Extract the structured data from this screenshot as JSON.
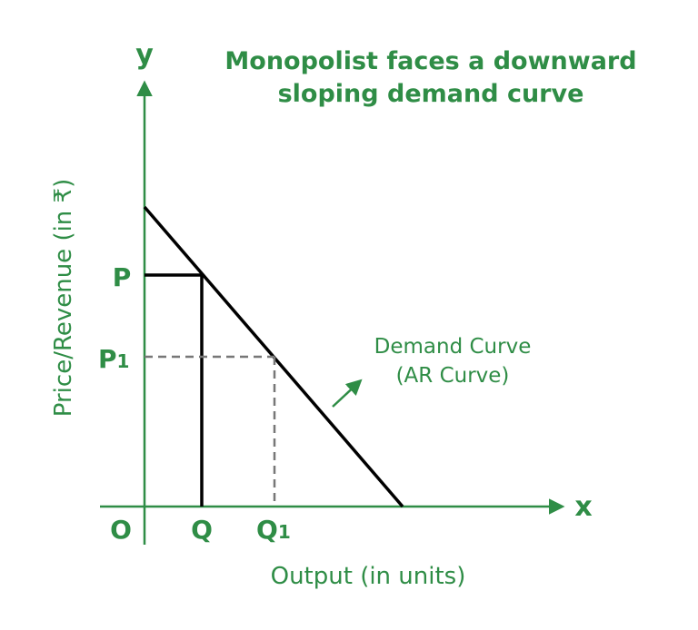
{
  "title_line1": "Monopolist faces a downward",
  "title_line2": "sloping demand curve",
  "y_axis_symbol": "y",
  "x_axis_symbol": "x",
  "y_axis_label": "Price/Revenue (in ₹)",
  "x_axis_label": "Output (in units)",
  "origin_label": "O",
  "labels": {
    "P": "P",
    "P1": "P",
    "P1_sub": "1",
    "Q": "Q",
    "Q1": "Q",
    "Q1_sub": "1"
  },
  "curve_label_line1": "Demand Curve",
  "curve_label_line2": "(AR Curve)",
  "colors": {
    "accent": "#2f8d46",
    "line": "#000000",
    "dashed": "#777777"
  }
}
